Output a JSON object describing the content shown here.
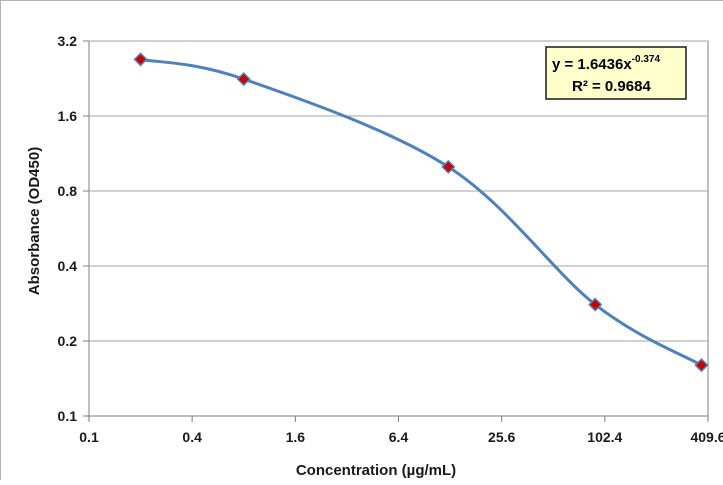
{
  "chart_data": {
    "type": "scatter",
    "title": "",
    "xlabel": "Concentration (µg/mL)",
    "ylabel": "Absorbance (OD450)",
    "x_scale": "log2",
    "y_scale": "log2",
    "xlim": [
      0.1,
      409.6
    ],
    "ylim": [
      0.1,
      3.2
    ],
    "x_ticks": [
      "0.1",
      "0.4",
      "1.6",
      "6.4",
      "25.6",
      "102.4",
      "409.6"
    ],
    "y_ticks": [
      "0.1",
      "0.2",
      "0.4",
      "0.8",
      "1.6",
      "3.2"
    ],
    "grid": "horizontal",
    "series": [
      {
        "x": [
          0.2,
          0.8,
          12.5,
          90,
          375
        ],
        "y": [
          2.7,
          2.25,
          1.0,
          0.28,
          0.16
        ],
        "marker": "diamond",
        "marker_color": "#cc0000",
        "line": "smooth",
        "line_color": "#4f81bd"
      }
    ],
    "annotation": {
      "equation_base": "y = 1.6436x",
      "equation_exponent": "-0.374",
      "r_squared": "R² = 0.9684",
      "background": "#ffffcc"
    }
  }
}
